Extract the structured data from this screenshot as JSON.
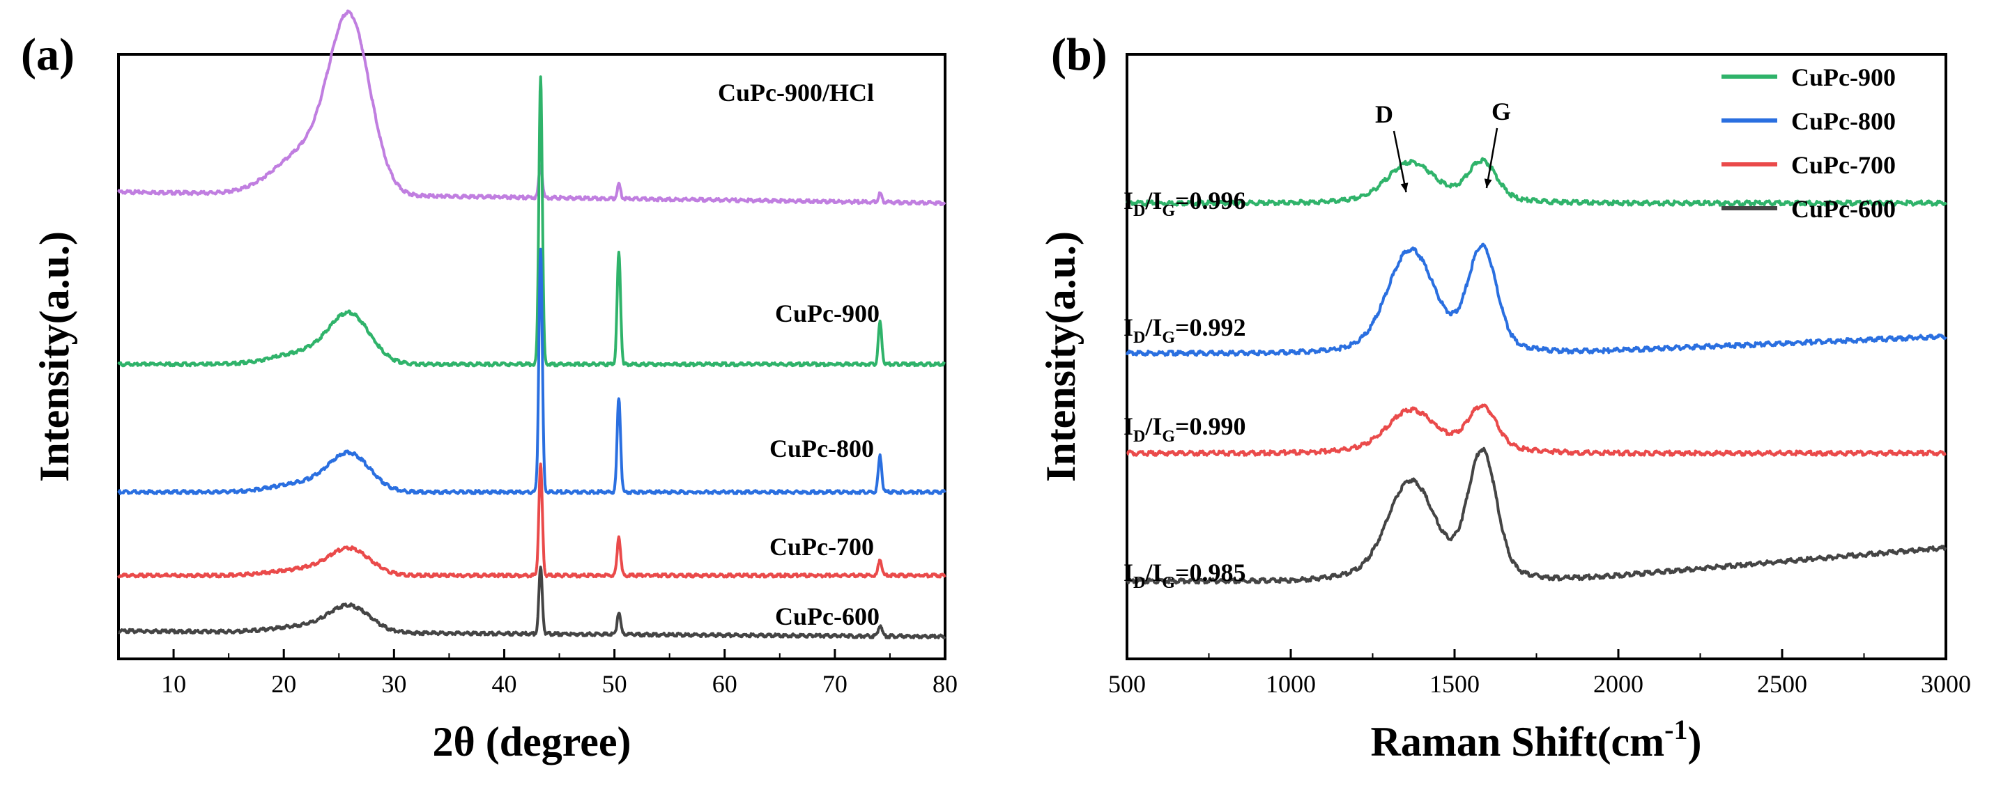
{
  "chart_data": [
    {
      "panel": "(a)",
      "type": "line",
      "xlabel": "2θ (degree)",
      "ylabel": "Intensity(a.u.)",
      "xlim": [
        5,
        80
      ],
      "xticks": [
        10,
        20,
        30,
        40,
        50,
        60,
        70,
        80
      ],
      "yticks": [],
      "series": [
        {
          "name": "CuPc-900/HCl",
          "color": "#c07ee0",
          "offset": 0.79,
          "broad": 0.3,
          "peaks": [
            [
              43.3,
              0.06
            ],
            [
              50.4,
              0.025
            ],
            [
              74.1,
              0.015
            ]
          ],
          "base_slope": -0.02,
          "label_x": 565
        },
        {
          "name": "CuPc-900",
          "color": "#2fb36a",
          "offset": 0.48,
          "broad": 0.085,
          "peaks": [
            [
              43.3,
              0.52
            ],
            [
              50.4,
              0.2
            ],
            [
              74.1,
              0.075
            ]
          ],
          "base_slope": 0.0,
          "label_x": 606
        },
        {
          "name": "CuPc-800",
          "color": "#2a6fe0",
          "offset": 0.25,
          "broad": 0.065,
          "peaks": [
            [
              43.3,
              0.44
            ],
            [
              50.4,
              0.17
            ],
            [
              74.1,
              0.065
            ]
          ],
          "base_slope": 0.0,
          "label_x": 602
        },
        {
          "name": "CuPc-700",
          "color": "#ea4a4a",
          "offset": 0.1,
          "broad": 0.045,
          "peaks": [
            [
              43.3,
              0.2
            ],
            [
              50.4,
              0.07
            ],
            [
              74.1,
              0.03
            ]
          ],
          "base_slope": 0.0,
          "label_x": 602
        },
        {
          "name": "CuPc-600",
          "color": "#444444",
          "offset": 0.0,
          "broad": 0.045,
          "peaks": [
            [
              43.3,
              0.12
            ],
            [
              50.4,
              0.04
            ],
            [
              74.1,
              0.02
            ]
          ],
          "base_slope": -0.01,
          "label_x": 606
        }
      ]
    },
    {
      "panel": "(b)",
      "type": "line",
      "xlabel": "Raman Shift(cm",
      "xlabel_sup": "-1",
      "xlabel_end": ")",
      "ylabel": "Intensity(a.u.)",
      "xlim": [
        500,
        3000
      ],
      "xticks": [
        500,
        1000,
        1500,
        2000,
        2500,
        3000
      ],
      "yticks": [],
      "annotations": [
        {
          "text": "D",
          "x": 1365
        },
        {
          "text": "G",
          "x": 1585
        }
      ],
      "ratio_prefix": "I",
      "ratio_sub1": "D",
      "ratio_slash": "/I",
      "ratio_sub2": "G",
      "series": [
        {
          "name": "CuPc-900",
          "color": "#2fb36a",
          "ratio": "=0.996",
          "offset": 0.77,
          "d_height": 0.06,
          "g_height": 0.065,
          "bg_height": 0.015,
          "end_rise": 0.0
        },
        {
          "name": "CuPc-800",
          "color": "#2a6fe0",
          "ratio": "=0.992",
          "offset": 0.5,
          "d_height": 0.16,
          "g_height": 0.17,
          "bg_height": 0.03,
          "end_rise": 0.03
        },
        {
          "name": "CuPc-700",
          "color": "#ea4a4a",
          "ratio": "=0.990",
          "offset": 0.32,
          "d_height": 0.06,
          "g_height": 0.07,
          "bg_height": 0.02,
          "end_rise": 0.0
        },
        {
          "name": "CuPc-600",
          "color": "#444444",
          "ratio": "=0.985",
          "offset": 0.09,
          "d_height": 0.15,
          "g_height": 0.21,
          "bg_height": 0.035,
          "end_rise": 0.06
        }
      ],
      "legend": [
        "CuPc-900",
        "CuPc-800",
        "CuPc-700",
        "CuPc-600"
      ]
    }
  ]
}
